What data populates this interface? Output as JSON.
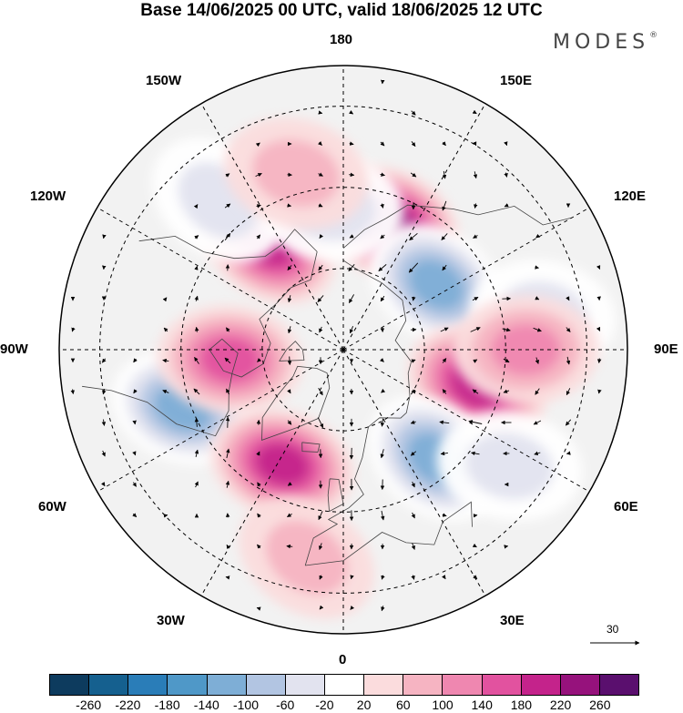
{
  "title": "Base 14/06/2025 00 UTC, valid 18/06/2025 12 UTC",
  "brand": "MODES",
  "brand_mark": "®",
  "meridian_labels": {
    "top": "180",
    "bottom": "0",
    "left": "90W",
    "right": "90E",
    "upper_left": "150W",
    "upper_right": "150E",
    "mid_upper_left": "120W",
    "mid_upper_right": "120E",
    "mid_lower_left": "60W",
    "mid_lower_right": "60E",
    "lower_left": "30W",
    "lower_right": "30E"
  },
  "reference_vector": {
    "value": "30"
  },
  "colorbar": {
    "colors": [
      "#0d3b5e",
      "#15608f",
      "#2a7db8",
      "#4f98c8",
      "#7eaed6",
      "#b2c5e2",
      "#e2e3ef",
      "#ffffff",
      "#fbdcdd",
      "#f6b4c2",
      "#ef87b0",
      "#e2529f",
      "#c4238b",
      "#96127c",
      "#5a0f6e"
    ],
    "ticks": [
      "-260",
      "-220",
      "-180",
      "-140",
      "-100",
      "-60",
      "-20",
      "20",
      "60",
      "100",
      "140",
      "180",
      "220",
      "260"
    ]
  },
  "anomalies": [
    {
      "id": "kamchatka-high",
      "lon": 160,
      "lat": 57,
      "value": 200
    },
    {
      "id": "alaska-high",
      "lon": -145,
      "lat": 58,
      "value": 170
    },
    {
      "id": "yakutsk-low",
      "lon": 125,
      "lat": 62,
      "value": -140
    },
    {
      "id": "ural-high",
      "lon": 75,
      "lat": 56,
      "value": 160
    },
    {
      "id": "hudson-low",
      "lon": -70,
      "lat": 48,
      "value": -150
    },
    {
      "id": "labrador-high",
      "lon": -85,
      "lat": 62,
      "value": 150
    },
    {
      "id": "greenland-high",
      "lon": -28,
      "lat": 58,
      "value": 170
    },
    {
      "id": "scandinavia-low",
      "lon": 40,
      "lat": 55,
      "value": -120
    },
    {
      "id": "bering-low",
      "lon": -175,
      "lat": 55,
      "value": -70
    },
    {
      "id": "aleutian-low",
      "lon": -140,
      "lat": 42,
      "value": -60
    },
    {
      "id": "pacific-high",
      "lon": -165,
      "lat": 45,
      "value": 60
    },
    {
      "id": "atlantic-high",
      "lon": -10,
      "lat": 38,
      "value": 60
    },
    {
      "id": "china-low",
      "lon": 100,
      "lat": 40,
      "value": -50
    },
    {
      "id": "mongolia-high",
      "lon": 90,
      "lat": 45,
      "value": 90
    },
    {
      "id": "caspian-low",
      "lon": 55,
      "lat": 40,
      "value": -50
    }
  ]
}
